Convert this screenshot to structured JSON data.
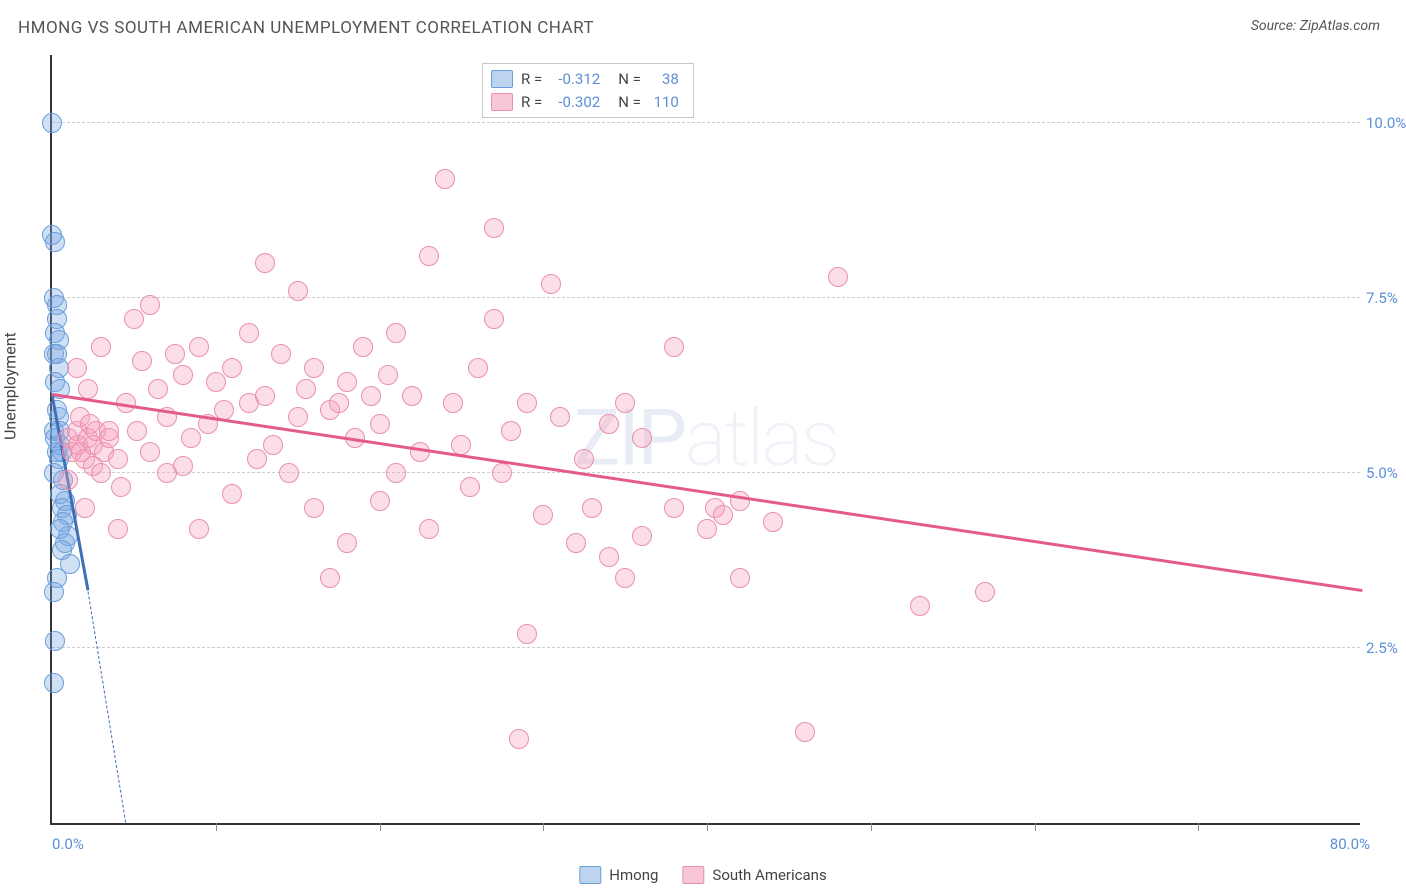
{
  "title": "HMONG VS SOUTH AMERICAN UNEMPLOYMENT CORRELATION CHART",
  "source": "Source: ZipAtlas.com",
  "ylabel": "Unemployment",
  "watermark_bold": "ZIP",
  "watermark_light": "atlas",
  "chart": {
    "type": "scatter",
    "xlim": [
      0,
      80
    ],
    "ylim": [
      0,
      11
    ],
    "x_tick_labels": {
      "left": "0.0%",
      "right": "80.0%"
    },
    "x_tick_positions": [
      10,
      20,
      30,
      40,
      50,
      60,
      70
    ],
    "y_gridlines": [
      2.5,
      5.0,
      7.5,
      10.0
    ],
    "y_tick_labels": [
      "2.5%",
      "5.0%",
      "7.5%",
      "10.0%"
    ],
    "grid_color": "#cccccc",
    "axis_color": "#333333",
    "label_color": "#5a8fd6",
    "label_fontsize": 15,
    "title_fontsize": 17,
    "background_color": "#ffffff",
    "marker_radius": 10,
    "marker_border_width": 1.2,
    "series": [
      {
        "name": "Hmong",
        "fill": "rgba(120,165,225,0.35)",
        "stroke": "#6a9edb",
        "swatch_fill": "#bcd4f0",
        "swatch_border": "#6a9edb",
        "R": "-0.312",
        "N": "38",
        "trend": {
          "x1": 0,
          "y1": 6.1,
          "x2": 2.2,
          "y2": 3.3,
          "color": "#3f6fb5",
          "width": 3,
          "dash_extend": {
            "x2": 4.5,
            "y2": 0
          }
        },
        "points": [
          [
            0.0,
            10.0
          ],
          [
            0.0,
            8.4
          ],
          [
            0.2,
            8.3
          ],
          [
            0.1,
            7.5
          ],
          [
            0.3,
            7.4
          ],
          [
            0.3,
            7.2
          ],
          [
            0.2,
            7.0
          ],
          [
            0.4,
            6.9
          ],
          [
            0.1,
            6.7
          ],
          [
            0.3,
            6.7
          ],
          [
            0.4,
            6.5
          ],
          [
            0.2,
            6.3
          ],
          [
            0.5,
            6.2
          ],
          [
            0.3,
            5.9
          ],
          [
            0.4,
            5.8
          ],
          [
            0.1,
            5.6
          ],
          [
            0.5,
            5.6
          ],
          [
            0.2,
            5.5
          ],
          [
            0.5,
            5.4
          ],
          [
            0.3,
            5.3
          ],
          [
            0.6,
            5.3
          ],
          [
            0.4,
            5.2
          ],
          [
            0.1,
            5.0
          ],
          [
            0.7,
            4.9
          ],
          [
            0.5,
            4.7
          ],
          [
            0.8,
            4.6
          ],
          [
            0.6,
            4.5
          ],
          [
            0.9,
            4.4
          ],
          [
            0.7,
            4.3
          ],
          [
            0.5,
            4.2
          ],
          [
            1.0,
            4.1
          ],
          [
            0.8,
            4.0
          ],
          [
            0.6,
            3.9
          ],
          [
            1.1,
            3.7
          ],
          [
            0.3,
            3.5
          ],
          [
            0.1,
            3.3
          ],
          [
            0.2,
            2.6
          ],
          [
            0.1,
            2.0
          ]
        ]
      },
      {
        "name": "South Americans",
        "fill": "rgba(245,160,190,0.35)",
        "stroke": "#e98fb0",
        "swatch_fill": "#f7c6d7",
        "swatch_border": "#e98fb0",
        "R": "-0.302",
        "N": "110",
        "trend": {
          "x1": 0,
          "y1": 6.1,
          "x2": 80,
          "y2": 3.3,
          "color": "#e45a8a",
          "width": 3
        },
        "points": [
          [
            1.0,
            5.5
          ],
          [
            1.2,
            5.3
          ],
          [
            1.5,
            5.6
          ],
          [
            1.6,
            5.4
          ],
          [
            1.7,
            5.8
          ],
          [
            1.8,
            5.3
          ],
          [
            2.0,
            5.2
          ],
          [
            2.2,
            5.5
          ],
          [
            2.3,
            5.7
          ],
          [
            2.5,
            5.1
          ],
          [
            2.5,
            5.4
          ],
          [
            2.7,
            5.6
          ],
          [
            3.0,
            5.0
          ],
          [
            3.2,
            5.3
          ],
          [
            3.5,
            5.5
          ],
          [
            3.5,
            5.6
          ],
          [
            4.0,
            5.2
          ],
          [
            4.2,
            4.8
          ],
          [
            4.5,
            6.0
          ],
          [
            5.0,
            7.2
          ],
          [
            5.2,
            5.6
          ],
          [
            5.5,
            6.6
          ],
          [
            6.0,
            7.4
          ],
          [
            6.0,
            5.3
          ],
          [
            6.5,
            6.2
          ],
          [
            7.0,
            5.0
          ],
          [
            7.0,
            5.8
          ],
          [
            7.5,
            6.7
          ],
          [
            8.0,
            6.4
          ],
          [
            8.0,
            5.1
          ],
          [
            8.5,
            5.5
          ],
          [
            9.0,
            6.8
          ],
          [
            9.0,
            4.2
          ],
          [
            9.5,
            5.7
          ],
          [
            10.0,
            6.3
          ],
          [
            10.5,
            5.9
          ],
          [
            11.0,
            6.5
          ],
          [
            11.0,
            4.7
          ],
          [
            12.0,
            6.0
          ],
          [
            12.0,
            7.0
          ],
          [
            12.5,
            5.2
          ],
          [
            13.0,
            6.1
          ],
          [
            13.5,
            5.4
          ],
          [
            13.0,
            8.0
          ],
          [
            14.0,
            6.7
          ],
          [
            14.5,
            5.0
          ],
          [
            15.0,
            7.6
          ],
          [
            15.0,
            5.8
          ],
          [
            15.5,
            6.2
          ],
          [
            16.0,
            4.5
          ],
          [
            16.0,
            6.5
          ],
          [
            17.0,
            5.9
          ],
          [
            17.0,
            3.5
          ],
          [
            17.5,
            6.0
          ],
          [
            18.0,
            6.3
          ],
          [
            18.0,
            4.0
          ],
          [
            18.5,
            5.5
          ],
          [
            19.0,
            6.8
          ],
          [
            19.5,
            6.1
          ],
          [
            20.0,
            4.6
          ],
          [
            20.0,
            5.7
          ],
          [
            20.5,
            6.4
          ],
          [
            21.0,
            7.0
          ],
          [
            21.0,
            5.0
          ],
          [
            22.0,
            6.1
          ],
          [
            22.5,
            5.3
          ],
          [
            23.0,
            8.1
          ],
          [
            23.0,
            4.2
          ],
          [
            24.0,
            9.2
          ],
          [
            24.5,
            6.0
          ],
          [
            25.0,
            5.4
          ],
          [
            25.5,
            4.8
          ],
          [
            26.0,
            6.5
          ],
          [
            27.0,
            7.2
          ],
          [
            27.0,
            8.5
          ],
          [
            27.5,
            5.0
          ],
          [
            28.0,
            5.6
          ],
          [
            28.5,
            1.2
          ],
          [
            29.0,
            6.0
          ],
          [
            29.0,
            2.7
          ],
          [
            30.0,
            4.4
          ],
          [
            30.5,
            7.7
          ],
          [
            31.0,
            5.8
          ],
          [
            32.0,
            4.0
          ],
          [
            32.5,
            5.2
          ],
          [
            33.0,
            4.5
          ],
          [
            34.0,
            5.7
          ],
          [
            34.0,
            3.8
          ],
          [
            35.0,
            3.5
          ],
          [
            35.0,
            6.0
          ],
          [
            36.0,
            5.5
          ],
          [
            36.0,
            4.1
          ],
          [
            38.0,
            6.8
          ],
          [
            38.0,
            4.5
          ],
          [
            40.0,
            4.2
          ],
          [
            40.5,
            4.5
          ],
          [
            41.0,
            4.4
          ],
          [
            42.0,
            4.6
          ],
          [
            42.0,
            3.5
          ],
          [
            44.0,
            4.3
          ],
          [
            46.0,
            1.3
          ],
          [
            48.0,
            7.8
          ],
          [
            53.0,
            3.1
          ],
          [
            57.0,
            3.3
          ],
          [
            1.0,
            4.9
          ],
          [
            1.5,
            6.5
          ],
          [
            2.0,
            4.5
          ],
          [
            2.2,
            6.2
          ],
          [
            3.0,
            6.8
          ],
          [
            4.0,
            4.2
          ]
        ]
      }
    ]
  },
  "bottom_legend": [
    {
      "label": "Hmong",
      "fill": "#bcd4f0",
      "border": "#6a9edb"
    },
    {
      "label": "South Americans",
      "fill": "#f7c6d7",
      "border": "#e98fb0"
    }
  ]
}
